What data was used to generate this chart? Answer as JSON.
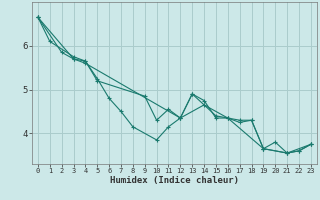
{
  "xlabel": "Humidex (Indice chaleur)",
  "background_color": "#cce8e8",
  "grid_color": "#aacccc",
  "line_color": "#1a7a6e",
  "marker": "+",
  "xlim": [
    -0.5,
    23.5
  ],
  "ylim": [
    3.3,
    7.0
  ],
  "yticks": [
    4,
    5,
    6
  ],
  "xticks": [
    0,
    1,
    2,
    3,
    4,
    5,
    6,
    7,
    8,
    9,
    10,
    11,
    12,
    13,
    14,
    15,
    16,
    17,
    18,
    19,
    20,
    21,
    22,
    23
  ],
  "series1": [
    [
      0,
      6.65
    ],
    [
      1,
      6.1
    ],
    [
      3,
      5.75
    ],
    [
      4,
      5.65
    ],
    [
      5,
      5.25
    ],
    [
      6,
      4.8
    ],
    [
      7,
      4.5
    ],
    [
      8,
      4.15
    ],
    [
      10,
      3.85
    ],
    [
      11,
      4.15
    ],
    [
      12,
      4.35
    ],
    [
      13,
      4.9
    ],
    [
      14,
      4.75
    ],
    [
      15,
      4.35
    ],
    [
      16,
      4.35
    ],
    [
      17,
      4.3
    ],
    [
      18,
      4.3
    ],
    [
      19,
      3.65
    ],
    [
      20,
      3.8
    ],
    [
      21,
      3.55
    ],
    [
      22,
      3.6
    ],
    [
      23,
      3.75
    ]
  ],
  "series2": [
    [
      0,
      6.65
    ],
    [
      2,
      5.85
    ],
    [
      3,
      5.7
    ],
    [
      4,
      5.65
    ],
    [
      5,
      5.2
    ],
    [
      9,
      4.85
    ],
    [
      10,
      4.3
    ],
    [
      11,
      4.55
    ],
    [
      12,
      4.35
    ],
    [
      13,
      4.9
    ],
    [
      15,
      4.4
    ],
    [
      16,
      4.35
    ],
    [
      17,
      4.25
    ],
    [
      18,
      4.3
    ],
    [
      19,
      3.65
    ],
    [
      21,
      3.55
    ],
    [
      22,
      3.6
    ],
    [
      23,
      3.75
    ]
  ],
  "series3": [
    [
      0,
      6.65
    ],
    [
      3,
      5.7
    ],
    [
      4,
      5.6
    ],
    [
      12,
      4.35
    ],
    [
      14,
      4.65
    ],
    [
      16,
      4.35
    ],
    [
      19,
      3.65
    ],
    [
      21,
      3.55
    ],
    [
      23,
      3.75
    ]
  ]
}
